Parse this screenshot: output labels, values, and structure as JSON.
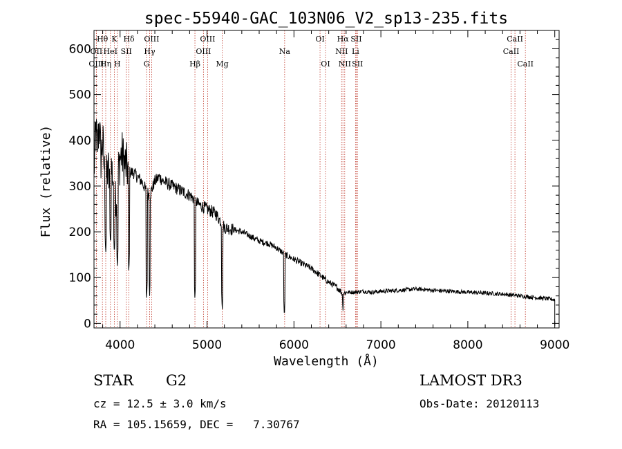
{
  "chart_data": {
    "type": "line",
    "title": "spec-55940-GAC_103N06_V2_sp13-235.fits",
    "xlabel": "Wavelength (Å)",
    "ylabel": "Flux (relative)",
    "xlim": [
      3700,
      9050
    ],
    "ylim": [
      -10,
      640
    ],
    "x_ticks": [
      4000,
      5000,
      6000,
      7000,
      8000,
      9000
    ],
    "y_ticks": [
      0,
      100,
      200,
      300,
      400,
      500,
      600
    ],
    "spectrum_knots": [
      [
        3700,
        330
      ],
      [
        3720,
        420
      ],
      [
        3740,
        380
      ],
      [
        3760,
        440
      ],
      [
        3780,
        360
      ],
      [
        3800,
        400
      ],
      [
        3820,
        330
      ],
      [
        3840,
        310
      ],
      [
        3860,
        340
      ],
      [
        3880,
        300
      ],
      [
        3900,
        340
      ],
      [
        3920,
        320
      ],
      [
        3940,
        300
      ],
      [
        3960,
        280
      ],
      [
        3980,
        330
      ],
      [
        4000,
        360
      ],
      [
        4020,
        370
      ],
      [
        4050,
        350
      ],
      [
        4080,
        340
      ],
      [
        4100,
        330
      ],
      [
        4150,
        330
      ],
      [
        4200,
        320
      ],
      [
        4250,
        310
      ],
      [
        4300,
        290
      ],
      [
        4340,
        280
      ],
      [
        4380,
        300
      ],
      [
        4400,
        310
      ],
      [
        4450,
        320
      ],
      [
        4500,
        310
      ],
      [
        4600,
        300
      ],
      [
        4700,
        290
      ],
      [
        4800,
        280
      ],
      [
        4860,
        270
      ],
      [
        4900,
        260
      ],
      [
        4950,
        255
      ],
      [
        5000,
        250
      ],
      [
        5100,
        240
      ],
      [
        5200,
        210
      ],
      [
        5300,
        205
      ],
      [
        5400,
        200
      ],
      [
        5500,
        190
      ],
      [
        5600,
        180
      ],
      [
        5700,
        175
      ],
      [
        5800,
        165
      ],
      [
        5900,
        150
      ],
      [
        6000,
        140
      ],
      [
        6100,
        130
      ],
      [
        6200,
        120
      ],
      [
        6300,
        105
      ],
      [
        6400,
        90
      ],
      [
        6500,
        78
      ],
      [
        6560,
        65
      ],
      [
        6600,
        68
      ],
      [
        6700,
        68
      ],
      [
        6800,
        70
      ],
      [
        6900,
        68
      ],
      [
        7000,
        70
      ],
      [
        7200,
        72
      ],
      [
        7400,
        75
      ],
      [
        7500,
        74
      ],
      [
        7600,
        72
      ],
      [
        7800,
        70
      ],
      [
        8000,
        68
      ],
      [
        8200,
        66
      ],
      [
        8400,
        64
      ],
      [
        8500,
        62
      ],
      [
        8600,
        60
      ],
      [
        8700,
        58
      ],
      [
        8800,
        56
      ],
      [
        8900,
        54
      ],
      [
        9000,
        52
      ]
    ],
    "spectrum_dips": [
      [
        3934,
        150
      ],
      [
        3969,
        120
      ],
      [
        3890,
        170
      ],
      [
        3835,
        150
      ],
      [
        4101,
        110
      ],
      [
        4340,
        60
      ],
      [
        4305,
        50
      ],
      [
        4861,
        50
      ],
      [
        5175,
        25
      ],
      [
        5890,
        12
      ],
      [
        6563,
        22
      ]
    ],
    "line_markers": [
      {
        "label": "Hθ",
        "x": 3797,
        "row": 1
      },
      {
        "label": "K",
        "x": 3934,
        "row": 1
      },
      {
        "label": "Hδ",
        "x": 4102,
        "row": 1
      },
      {
        "label": "OIII",
        "x": 4363,
        "row": 1
      },
      {
        "label": "OIII",
        "x": 5007,
        "row": 1
      },
      {
        "label": "OI",
        "x": 6300,
        "row": 1
      },
      {
        "label": "Hα",
        "x": 6563,
        "row": 1
      },
      {
        "label": "SII",
        "x": 6717,
        "row": 1
      },
      {
        "label": "CaII",
        "x": 8542,
        "row": 1
      },
      {
        "label": "OII",
        "x": 3727,
        "row": 2
      },
      {
        "label": "HeI",
        "x": 3889,
        "row": 2
      },
      {
        "label": "SII",
        "x": 4072,
        "row": 2
      },
      {
        "label": "Hγ",
        "x": 4340,
        "row": 2
      },
      {
        "label": "OIII",
        "x": 4959,
        "row": 2
      },
      {
        "label": "Na",
        "x": 5893,
        "row": 2
      },
      {
        "label": "NII",
        "x": 6548,
        "row": 2
      },
      {
        "label": "Li",
        "x": 6708,
        "row": 2
      },
      {
        "label": "CaII",
        "x": 8498,
        "row": 2
      },
      {
        "label": "OIII",
        "x": 3727,
        "row": 3
      },
      {
        "label": "Hη",
        "x": 3835,
        "row": 3
      },
      {
        "label": "H",
        "x": 3969,
        "row": 3
      },
      {
        "label": "G",
        "x": 4305,
        "row": 3
      },
      {
        "label": "Hβ",
        "x": 4861,
        "row": 3
      },
      {
        "label": "Mg",
        "x": 5175,
        "row": 3
      },
      {
        "label": "OI",
        "x": 6363,
        "row": 3
      },
      {
        "label": "NII",
        "x": 6584,
        "row": 3
      },
      {
        "label": "SII",
        "x": 6731,
        "row": 3
      },
      {
        "label": "CaII",
        "x": 8662,
        "row": 3
      }
    ]
  },
  "info": {
    "class_label": "STAR",
    "subclass": "G2",
    "survey": "LAMOST DR3",
    "cz_text": "cz = 12.5 ± 3.0 km/s",
    "obs_date": "Obs-Date: 20120113",
    "coords": "RA = 105.15659, DEC =   7.30767"
  },
  "colors": {
    "line_marker": "#c0392b",
    "spectrum": "#000000"
  }
}
